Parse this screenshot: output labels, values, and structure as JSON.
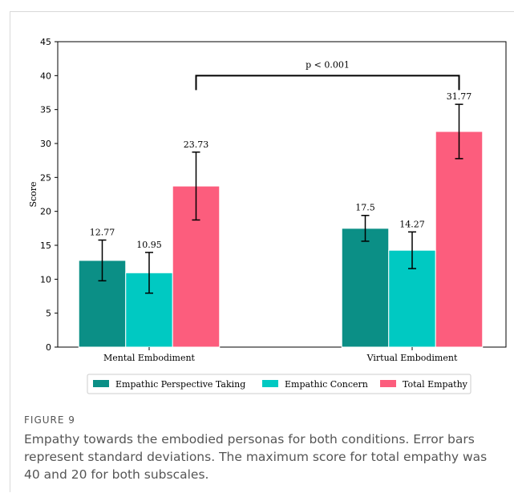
{
  "figure": {
    "label": "FIGURE 9",
    "caption": "Empathy towards the embodied personas for both conditions. Error bars represent standard deviations. The maximum score for total empathy was 40 and 20 for both subscales."
  },
  "chart_data": {
    "type": "bar",
    "title": "",
    "xlabel": "",
    "ylabel": "Score",
    "ylim": [
      0,
      45
    ],
    "yticks": [
      0,
      5,
      10,
      15,
      20,
      25,
      30,
      35,
      40,
      45
    ],
    "grid": false,
    "legend_placement": "bottom-center",
    "categories": [
      "Mental Embodiment",
      "Virtual Embodiment"
    ],
    "series": [
      {
        "name": "Empathic Perspective Taking",
        "color": "#0b8f86",
        "values": [
          12.77,
          17.5
        ],
        "errors": [
          3.0,
          1.9
        ],
        "labels": [
          "12.77",
          "17.5"
        ]
      },
      {
        "name": "Empathic Concern",
        "color": "#00c9c2",
        "values": [
          10.95,
          14.27
        ],
        "errors": [
          3.0,
          2.7
        ],
        "labels": [
          "10.95",
          "14.27"
        ]
      },
      {
        "name": "Total Empathy",
        "color": "#fc5d7d",
        "values": [
          23.73,
          31.77
        ],
        "errors": [
          5.0,
          4.0
        ],
        "labels": [
          "23.73",
          "31.77"
        ]
      }
    ],
    "annotation": {
      "text": "p < 0.001",
      "between": [
        "Mental Embodiment",
        "Virtual Embodiment"
      ],
      "series": "Total Empathy",
      "y": 40
    }
  }
}
